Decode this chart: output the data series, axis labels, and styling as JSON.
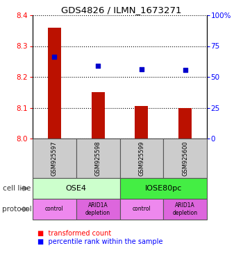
{
  "title": "GDS4826 / ILMN_1673271",
  "samples": [
    "GSM925597",
    "GSM925598",
    "GSM925599",
    "GSM925600"
  ],
  "bar_values": [
    8.36,
    8.15,
    8.105,
    8.1
  ],
  "bar_base": 8.0,
  "scatter_values": [
    8.265,
    8.235,
    8.225,
    8.222
  ],
  "ylim": [
    8.0,
    8.4
  ],
  "y_ticks": [
    8.0,
    8.1,
    8.2,
    8.3,
    8.4
  ],
  "y2_ticks": [
    0,
    25,
    50,
    75,
    100
  ],
  "bar_color": "#bb1100",
  "scatter_color": "#0000cc",
  "cell_lines": [
    [
      "OSE4",
      0,
      2
    ],
    [
      "IOSE80pc",
      2,
      4
    ]
  ],
  "cell_line_colors": [
    "#ccffcc",
    "#44ee44"
  ],
  "protocols": [
    "control",
    "ARID1A\ndepletion",
    "control",
    "ARID1A\ndepletion"
  ],
  "protocol_colors": [
    "#ee88ee",
    "#dd66dd",
    "#ee88ee",
    "#dd66dd"
  ],
  "legend_red": "transformed count",
  "legend_blue": "percentile rank within the sample"
}
